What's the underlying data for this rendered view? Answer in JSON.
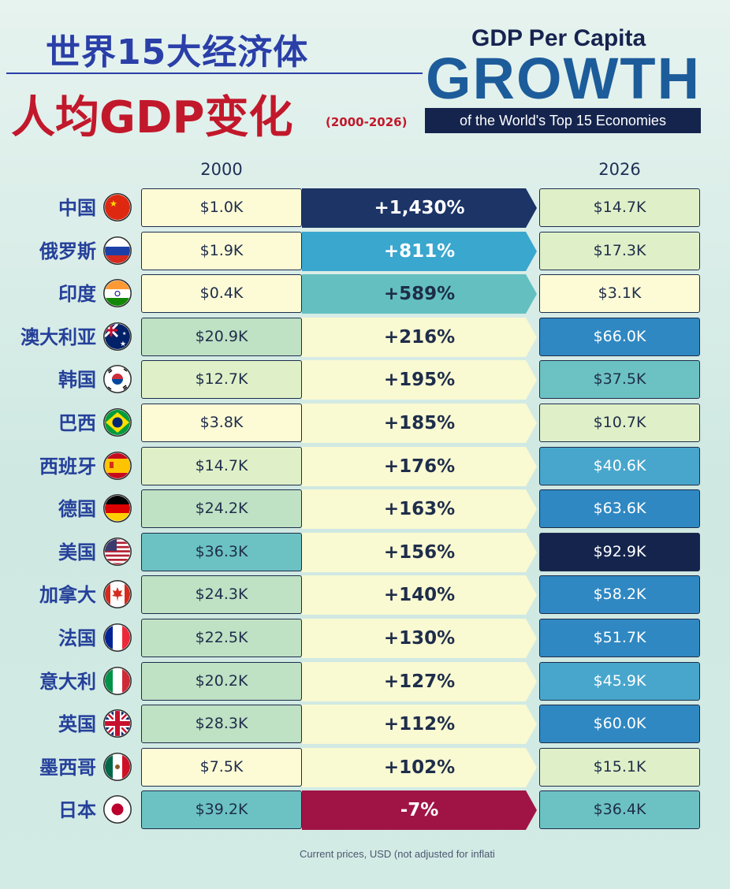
{
  "header": {
    "title_cn_1": "世界15大经济体",
    "title_cn_2": "人均GDP变化",
    "period": "(2000-2026)",
    "title_en_1": "GDP Per Capita",
    "title_en_2": "GROWTH",
    "title_en_3": "of the World's Top 15 Economies"
  },
  "columns": {
    "left": "2000",
    "right": "2026"
  },
  "footnote": "Current prices, USD (not adjusted for inflati",
  "chart_data": {
    "type": "table",
    "columns": [
      "2000",
      "growth",
      "2026"
    ],
    "rows": [
      {
        "country": "中国",
        "flag": "china-flag",
        "v2000": 1.0,
        "label2000": "$1.0K",
        "growth": 1430,
        "growth_label": "+1,430%",
        "v2026": 14.7,
        "label2026": "$14.7K"
      },
      {
        "country": "俄罗斯",
        "flag": "russia-flag",
        "v2000": 1.9,
        "label2000": "$1.9K",
        "growth": 811,
        "growth_label": "+811%",
        "v2026": 17.3,
        "label2026": "$17.3K"
      },
      {
        "country": "印度",
        "flag": "india-flag",
        "v2000": 0.4,
        "label2000": "$0.4K",
        "growth": 589,
        "growth_label": "+589%",
        "v2026": 3.1,
        "label2026": "$3.1K"
      },
      {
        "country": "澳大利亚",
        "flag": "australia-flag",
        "v2000": 20.9,
        "label2000": "$20.9K",
        "growth": 216,
        "growth_label": "+216%",
        "v2026": 66.0,
        "label2026": "$66.0K"
      },
      {
        "country": "韩国",
        "flag": "korea-flag",
        "v2000": 12.7,
        "label2000": "$12.7K",
        "growth": 195,
        "growth_label": "+195%",
        "v2026": 37.5,
        "label2026": "$37.5K"
      },
      {
        "country": "巴西",
        "flag": "brazil-flag",
        "v2000": 3.8,
        "label2000": "$3.8K",
        "growth": 185,
        "growth_label": "+185%",
        "v2026": 10.7,
        "label2026": "$10.7K"
      },
      {
        "country": "西班牙",
        "flag": "spain-flag",
        "v2000": 14.7,
        "label2000": "$14.7K",
        "growth": 176,
        "growth_label": "+176%",
        "v2026": 40.6,
        "label2026": "$40.6K"
      },
      {
        "country": "德国",
        "flag": "germany-flag",
        "v2000": 24.2,
        "label2000": "$24.2K",
        "growth": 163,
        "growth_label": "+163%",
        "v2026": 63.6,
        "label2026": "$63.6K"
      },
      {
        "country": "美国",
        "flag": "usa-flag",
        "v2000": 36.3,
        "label2000": "$36.3K",
        "growth": 156,
        "growth_label": "+156%",
        "v2026": 92.9,
        "label2026": "$92.9K"
      },
      {
        "country": "加拿大",
        "flag": "canada-flag",
        "v2000": 24.3,
        "label2000": "$24.3K",
        "growth": 140,
        "growth_label": "+140%",
        "v2026": 58.2,
        "label2026": "$58.2K"
      },
      {
        "country": "法国",
        "flag": "france-flag",
        "v2000": 22.5,
        "label2000": "$22.5K",
        "growth": 130,
        "growth_label": "+130%",
        "v2026": 51.7,
        "label2026": "$51.7K"
      },
      {
        "country": "意大利",
        "flag": "italy-flag",
        "v2000": 20.2,
        "label2000": "$20.2K",
        "growth": 127,
        "growth_label": "+127%",
        "v2026": 45.9,
        "label2026": "$45.9K"
      },
      {
        "country": "英国",
        "flag": "uk-flag",
        "v2000": 28.3,
        "label2000": "$28.3K",
        "growth": 112,
        "growth_label": "+112%",
        "v2026": 60.0,
        "label2026": "$60.0K"
      },
      {
        "country": "墨西哥",
        "flag": "mexico-flag",
        "v2000": 7.5,
        "label2000": "$7.5K",
        "growth": 102,
        "growth_label": "+102%",
        "v2026": 15.1,
        "label2026": "$15.1K"
      },
      {
        "country": "日本",
        "flag": "japan-flag",
        "v2000": 39.2,
        "label2000": "$39.2K",
        "growth": -7,
        "growth_label": "-7%",
        "v2026": 36.4,
        "label2026": "$36.4K"
      }
    ]
  }
}
